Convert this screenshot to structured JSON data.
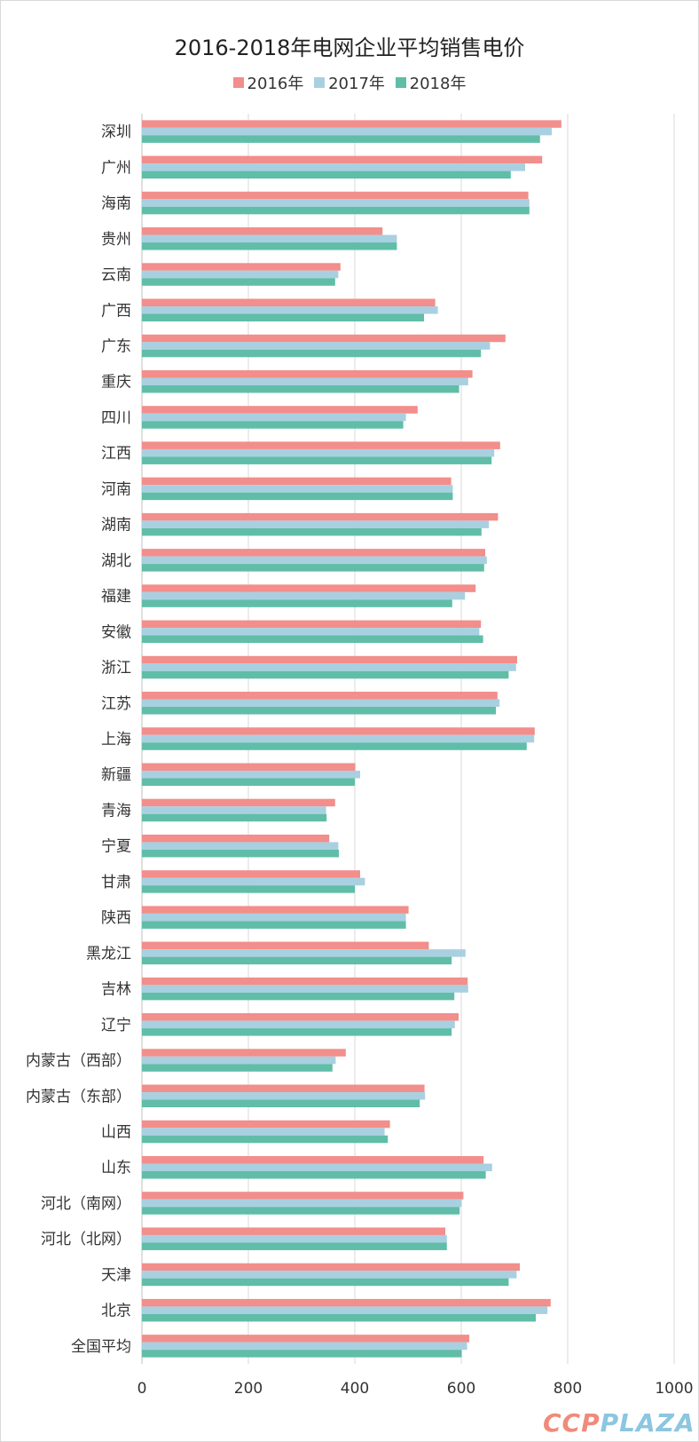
{
  "chart_data": {
    "type": "bar",
    "orientation": "horizontal",
    "title": "2016-2018年电网企业平均销售电价",
    "xlim": [
      0,
      1000
    ],
    "xticks": [
      0,
      200,
      400,
      600,
      800,
      1000
    ],
    "grid": true,
    "legend_position": "top",
    "categories": [
      "深圳",
      "广州",
      "海南",
      "贵州",
      "云南",
      "广西",
      "广东",
      "重庆",
      "四川",
      "江西",
      "河南",
      "湖南",
      "湖北",
      "福建",
      "安徽",
      "浙江",
      "江苏",
      "上海",
      "新疆",
      "青海",
      "宁夏",
      "甘肃",
      "陕西",
      "黑龙江",
      "吉林",
      "辽宁",
      "内蒙古（西部）",
      "内蒙古（东部）",
      "山西",
      "山东",
      "河北（南网）",
      "河北（北网）",
      "天津",
      "北京",
      "全国平均"
    ],
    "series": [
      {
        "name": "2016年",
        "color": "#f28e8b",
        "values": [
          788,
          752,
          726,
          452,
          373,
          551,
          683,
          621,
          518,
          673,
          581,
          669,
          645,
          627,
          637,
          705,
          668,
          738,
          401,
          363,
          352,
          410,
          501,
          539,
          612,
          595,
          383,
          531,
          466,
          642,
          604,
          570,
          710,
          768,
          615
        ]
      },
      {
        "name": "2017年",
        "color": "#a9d0e0",
        "values": [
          770,
          720,
          728,
          479,
          369,
          556,
          654,
          613,
          496,
          662,
          584,
          652,
          648,
          607,
          634,
          703,
          672,
          737,
          410,
          346,
          369,
          419,
          496,
          608,
          613,
          588,
          364,
          532,
          456,
          658,
          601,
          573,
          704,
          762,
          611
        ]
      },
      {
        "name": "2018年",
        "color": "#60bda8",
        "values": [
          748,
          693,
          728,
          479,
          363,
          530,
          637,
          596,
          491,
          657,
          584,
          638,
          643,
          583,
          641,
          689,
          665,
          723,
          400,
          347,
          370,
          400,
          496,
          582,
          587,
          582,
          358,
          522,
          462,
          646,
          597,
          573,
          689,
          740,
          601
        ]
      }
    ]
  },
  "watermark": {
    "part1": "CCP",
    "part2": "PLAZA"
  }
}
